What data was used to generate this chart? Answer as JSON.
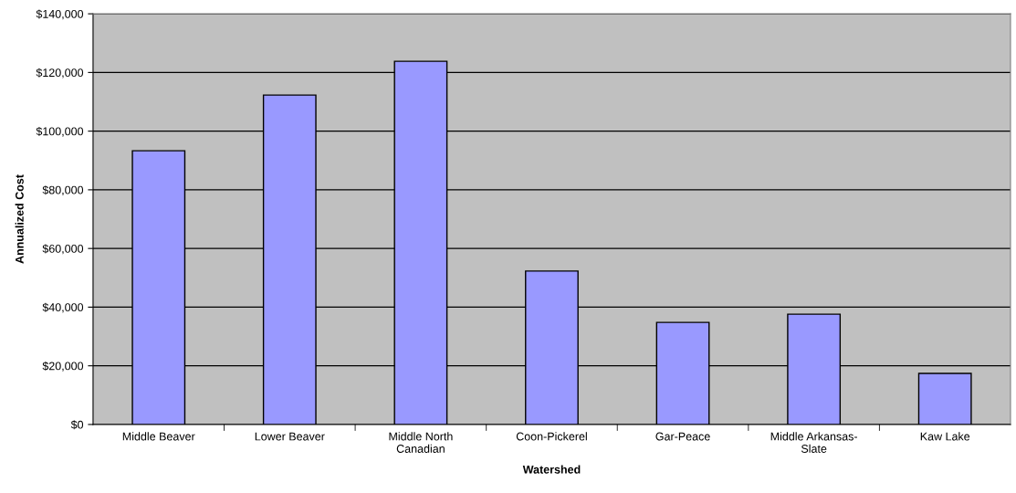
{
  "chart_data": {
    "type": "bar",
    "xlabel": "Watershed",
    "ylabel": "Annualized Cost",
    "categories": [
      "Middle Beaver",
      "Lower Beaver",
      "Middle North\nCanadian",
      "Coon-Pickerel",
      "Gar-Peace",
      "Middle Arkansas-\nSlate",
      "Kaw Lake"
    ],
    "values": [
      93300,
      112300,
      123800,
      52300,
      34800,
      37600,
      17400
    ],
    "color": "#9999ff",
    "ylim": [
      0,
      140000
    ],
    "yticks": [
      {
        "value": 0,
        "label": "$0"
      },
      {
        "value": 20000,
        "label": "$20,000"
      },
      {
        "value": 40000,
        "label": "$40,000"
      },
      {
        "value": 60000,
        "label": "$60,000"
      },
      {
        "value": 80000,
        "label": "$80,000"
      },
      {
        "value": 100000,
        "label": "$100,000"
      },
      {
        "value": 120000,
        "label": "$120,000"
      },
      {
        "value": 140000,
        "label": "$140,000"
      }
    ],
    "grid": "y"
  }
}
